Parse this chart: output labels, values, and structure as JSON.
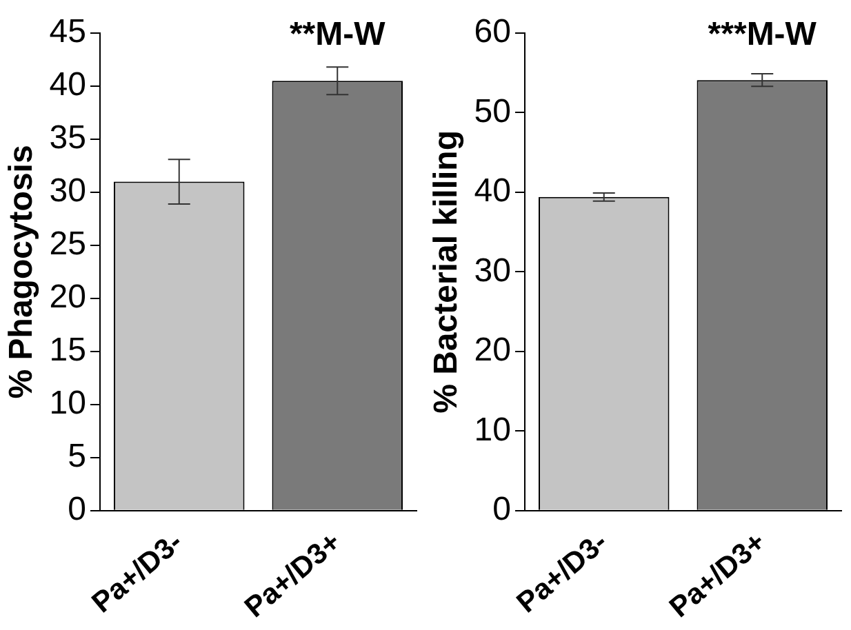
{
  "chart_data": [
    {
      "type": "bar",
      "ylabel": "% Phagocytosis",
      "categories": [
        "Pa+/D3-",
        "Pa+/D3+"
      ],
      "values": [
        31.0,
        40.5
      ],
      "errors": [
        2.1,
        1.3
      ],
      "colors": [
        "#c4c4c4",
        "#7a7a7a"
      ],
      "ylim": [
        0,
        45
      ],
      "yticks": [
        0,
        5,
        10,
        15,
        20,
        25,
        30,
        35,
        40,
        45
      ],
      "grid": false,
      "legend": false,
      "annotations": [
        "**M-W"
      ]
    },
    {
      "type": "bar",
      "ylabel": "% Bacterial killing",
      "categories": [
        "Pa+/D3-",
        "Pa+/D3+"
      ],
      "values": [
        39.4,
        54.1
      ],
      "errors": [
        0.5,
        0.8
      ],
      "colors": [
        "#c4c4c4",
        "#7a7a7a"
      ],
      "ylim": [
        0,
        60
      ],
      "yticks": [
        0,
        10,
        20,
        30,
        40,
        50,
        60
      ],
      "grid": false,
      "legend": false,
      "annotations": [
        "***M-W"
      ]
    }
  ]
}
